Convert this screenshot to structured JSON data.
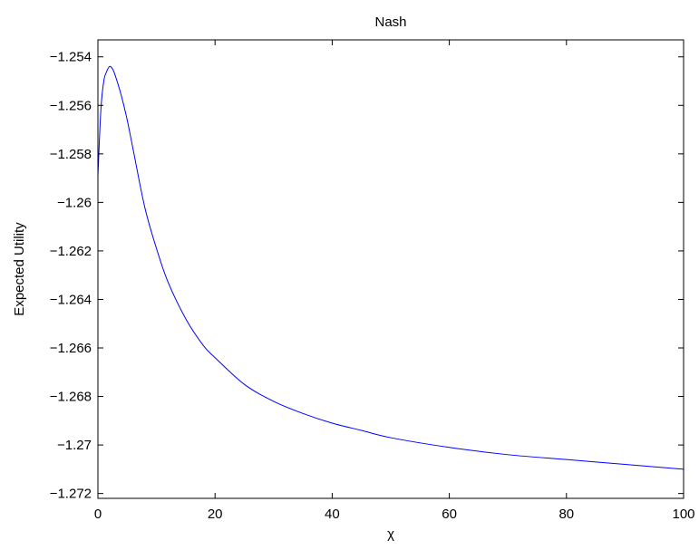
{
  "chart_data": {
    "type": "line",
    "title": "Nash",
    "xlabel": "χ",
    "ylabel": "Expected Utility",
    "xlim": [
      0,
      100
    ],
    "ylim": [
      -1.2722,
      -1.2533
    ],
    "x_ticks": [
      0,
      20,
      40,
      60,
      80,
      100
    ],
    "x_tick_labels": [
      "0",
      "20",
      "40",
      "60",
      "80",
      "100"
    ],
    "y_ticks": [
      -1.254,
      -1.256,
      -1.258,
      -1.26,
      -1.262,
      -1.264,
      -1.266,
      -1.268,
      -1.27,
      -1.272
    ],
    "y_tick_labels": [
      "−1.254",
      "−1.256",
      "−1.258",
      "−1.26",
      "−1.262",
      "−1.264",
      "−1.266",
      "−1.268",
      "−1.27",
      "−1.272"
    ],
    "grid": false,
    "series": [
      {
        "color": "#0000ff",
        "x": [
          0,
          0.5,
          1,
          1.5,
          2,
          2.5,
          3,
          4,
          5,
          6,
          8,
          10,
          12,
          15,
          18,
          20,
          25,
          30,
          35,
          40,
          45,
          50,
          60,
          70,
          80,
          90,
          100
        ],
        "y": [
          -1.2589,
          -1.2562,
          -1.255,
          -1.2546,
          -1.2544,
          -1.2545,
          -1.2548,
          -1.2556,
          -1.2566,
          -1.2578,
          -1.2602,
          -1.2619,
          -1.2633,
          -1.2648,
          -1.2659,
          -1.2664,
          -1.2675,
          -1.2682,
          -1.2687,
          -1.2691,
          -1.2694,
          -1.2697,
          -1.2701,
          -1.2704,
          -1.2706,
          -1.2708,
          -1.271
        ]
      }
    ]
  }
}
